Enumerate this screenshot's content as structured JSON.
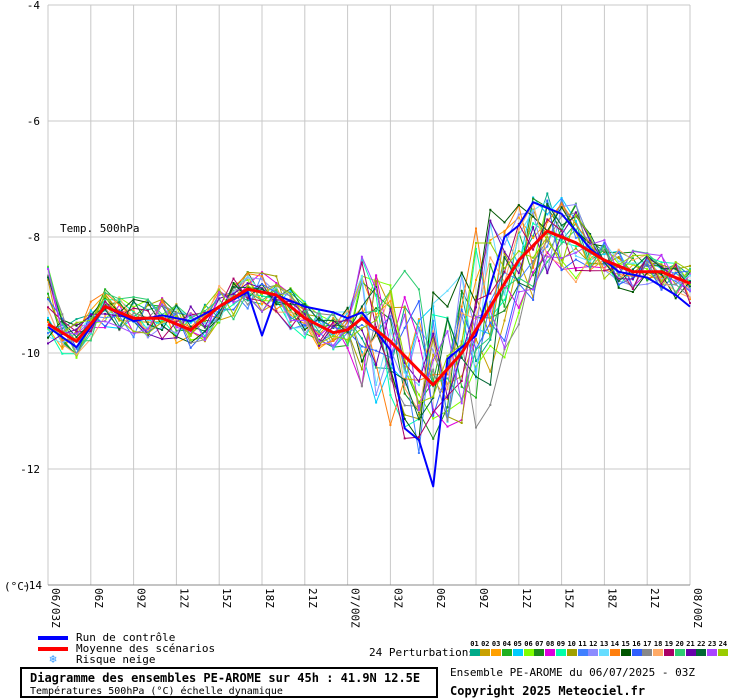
{
  "chart_data": {
    "type": "line",
    "annotation": "Temp. 500hPa",
    "ylabel": "(°C)",
    "ylim": [
      -14,
      -4
    ],
    "yticks": [
      -4,
      -6,
      -8,
      -10,
      -12,
      -14
    ],
    "xtick_labels": [
      "06/03Z",
      "06Z",
      "09Z",
      "12Z",
      "15Z",
      "18Z",
      "21Z",
      "07/00Z",
      "03Z",
      "06Z",
      "09Z",
      "12Z",
      "15Z",
      "18Z",
      "21Z",
      "08/00Z"
    ],
    "x_hours_start": 3,
    "x_hours_end": 48,
    "grid": true,
    "series": [
      {
        "name": "Moyenne des scénarios",
        "color": "#ff0000",
        "values": [
          [
            3,
            -9.5
          ],
          [
            5,
            -9.8
          ],
          [
            7,
            -9.2
          ],
          [
            9,
            -9.4
          ],
          [
            11,
            -9.4
          ],
          [
            13,
            -9.6
          ],
          [
            15,
            -9.2
          ],
          [
            17,
            -8.9
          ],
          [
            19,
            -9.0
          ],
          [
            21,
            -9.4
          ],
          [
            23,
            -9.65
          ],
          [
            24,
            -9.6
          ],
          [
            25,
            -9.4
          ],
          [
            27,
            -9.8
          ],
          [
            29,
            -10.3
          ],
          [
            30,
            -10.55
          ],
          [
            32,
            -10.0
          ],
          [
            34,
            -9.2
          ],
          [
            36,
            -8.4
          ],
          [
            38,
            -7.9
          ],
          [
            40,
            -8.1
          ],
          [
            42,
            -8.4
          ],
          [
            44,
            -8.6
          ],
          [
            46,
            -8.6
          ],
          [
            48,
            -8.8
          ]
        ]
      },
      {
        "name": "Run de contrôle",
        "color": "#0000ff",
        "values": [
          [
            3,
            -9.55
          ],
          [
            5,
            -9.9
          ],
          [
            7,
            -9.2
          ],
          [
            9,
            -9.45
          ],
          [
            11,
            -9.35
          ],
          [
            13,
            -9.45
          ],
          [
            15,
            -9.2
          ],
          [
            17,
            -8.95
          ],
          [
            18,
            -9.7
          ],
          [
            19,
            -9.0
          ],
          [
            21,
            -9.2
          ],
          [
            23,
            -9.3
          ],
          [
            24,
            -9.4
          ],
          [
            25,
            -9.3
          ],
          [
            27,
            -9.95
          ],
          [
            28,
            -11.3
          ],
          [
            29,
            -11.5
          ],
          [
            30,
            -12.3
          ],
          [
            31,
            -10.1
          ],
          [
            33,
            -9.7
          ],
          [
            35,
            -8.0
          ],
          [
            36,
            -7.8
          ],
          [
            37,
            -7.4
          ],
          [
            39,
            -7.6
          ],
          [
            41,
            -8.2
          ],
          [
            43,
            -8.6
          ],
          [
            45,
            -8.7
          ],
          [
            47,
            -9.0
          ],
          [
            48,
            -9.2
          ]
        ]
      }
    ],
    "perturbations": {
      "count_label": "24 Perturbations",
      "numbers": [
        "01",
        "02",
        "03",
        "04",
        "05",
        "06",
        "07",
        "08",
        "09",
        "10",
        "11",
        "12",
        "13",
        "14",
        "15",
        "16",
        "17",
        "18",
        "19",
        "20",
        "21",
        "22",
        "23",
        "24"
      ],
      "colors": [
        "#00aa88",
        "#c8a000",
        "#ffa000",
        "#20b020",
        "#00ccff",
        "#80ff00",
        "#1a8a1a",
        "#dd00dd",
        "#00ffaa",
        "#a0a000",
        "#4080ff",
        "#8c8cff",
        "#66ddff",
        "#ff7f0e",
        "#005500",
        "#3060ff",
        "#888888",
        "#ffaa66",
        "#aa0066",
        "#2ecc71",
        "#6600aa",
        "#006633",
        "#aa44ff",
        "#99cc00"
      ]
    },
    "legend": [
      "Run de contrôle",
      "Moyenne des scénarios",
      "Risque neige"
    ]
  },
  "footer": {
    "title": "Diagramme des ensembles PE-AROME sur 45h : 41.9N 12.5E",
    "subtitle": "Températures 500hPa (°C) échelle dynamique",
    "ensemble_info": "Ensemble PE-AROME du 06/07/2025 - 03Z",
    "copyright": "Copyright 2025 Meteociel.fr"
  },
  "colors": {
    "mean": "#ff0000",
    "control": "#0000ff",
    "snow": "#3399ff",
    "grid": "#c8c8c8"
  },
  "icons": {
    "snow": "snowflake-icon"
  }
}
